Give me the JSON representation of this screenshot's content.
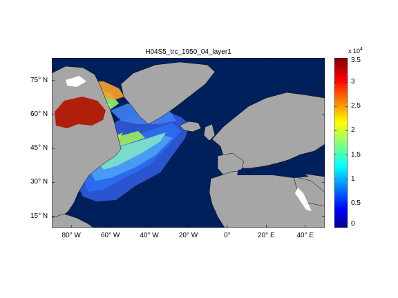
{
  "title": "H04S5_trc_1950_04_layer1",
  "colors": {
    "ocean_base": "#00205c",
    "land": "#a6a6a6",
    "coast": "#000000",
    "unmodeled_white": "#ffffff"
  },
  "lat_ticks": [
    {
      "label": "75° N",
      "value": 75
    },
    {
      "label": "60° N",
      "value": 60
    },
    {
      "label": "45° N",
      "value": 45
    },
    {
      "label": "30° N",
      "value": 30
    },
    {
      "label": "15° N",
      "value": 15
    }
  ],
  "lon_ticks": [
    {
      "label": "80° W",
      "value": -80
    },
    {
      "label": "60° W",
      "value": -60
    },
    {
      "label": "40° W",
      "value": -40
    },
    {
      "label": "20° W",
      "value": -20
    },
    {
      "label": "0°",
      "value": 0
    },
    {
      "label": "20° E",
      "value": 20
    },
    {
      "label": "40° E",
      "value": 40
    }
  ],
  "extent": {
    "lon": [
      -90,
      50
    ],
    "lat": [
      10,
      85
    ]
  },
  "colorbar": {
    "min": 0,
    "max": 35000,
    "multiplier": "x 10",
    "exponent": "4",
    "ticks": [
      {
        "label": "0",
        "value": 0
      },
      {
        "label": "0.5",
        "value": 5000
      },
      {
        "label": "1",
        "value": 10000
      },
      {
        "label": "1.5",
        "value": 15000
      },
      {
        "label": "2",
        "value": 20000
      },
      {
        "label": "2.5",
        "value": 25000
      },
      {
        "label": "3",
        "value": 30000
      },
      {
        "label": "3.5",
        "value": 35000
      }
    ]
  }
}
